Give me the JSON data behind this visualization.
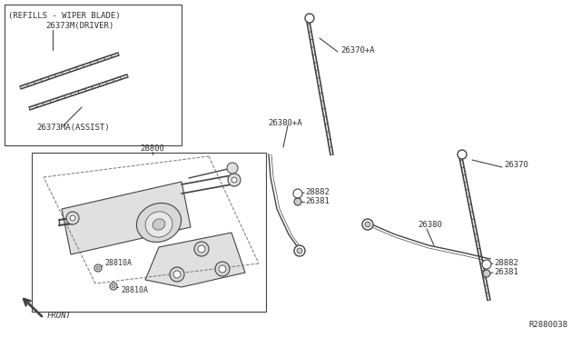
{
  "bg_color": "#ffffff",
  "line_color": "#444444",
  "text_color": "#333333",
  "ref_code": "R2880038",
  "figsize": [
    6.4,
    3.72
  ],
  "dpi": 100,
  "parts": {
    "box1_title": "(REFILLS - WIPER BLADE)",
    "driver_label": "26373M(DRIVER)",
    "assist_label": "26373MA(ASSIST)",
    "motor_label": "28800",
    "front_label": "FRONT",
    "lbl_28810A_1": "28810A",
    "lbl_28810A_2": "28810A",
    "lbl_26370pA": "26370+A",
    "lbl_26380pA": "26380+A",
    "lbl_28882_1": "28882",
    "lbl_26381_1": "26381",
    "lbl_26370": "26370",
    "lbl_26380": "26380",
    "lbl_28882_2": "28882",
    "lbl_26381_2": "26381"
  }
}
